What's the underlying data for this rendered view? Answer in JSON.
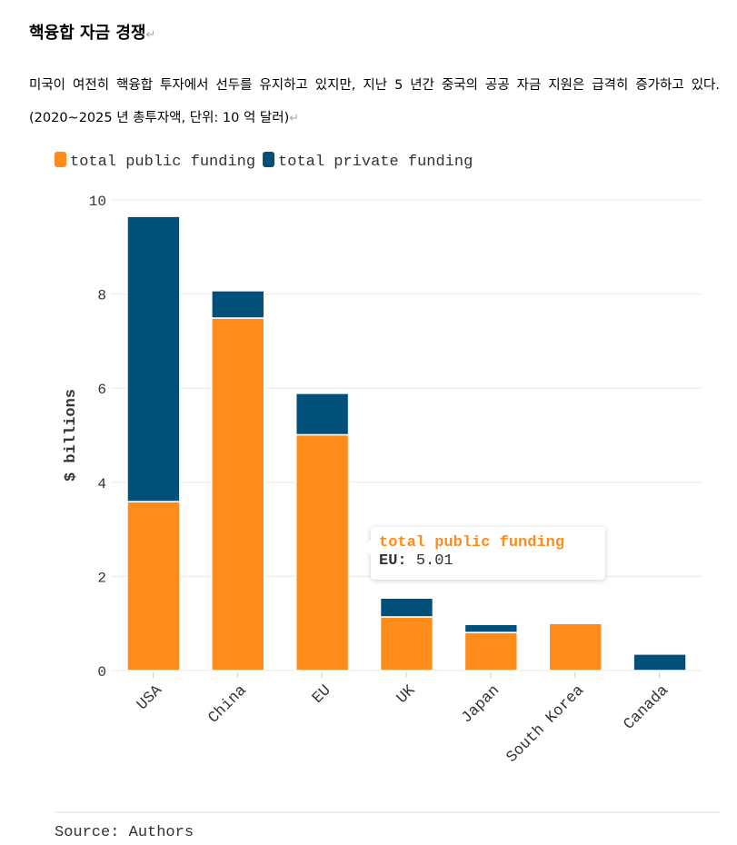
{
  "header": {
    "title": "핵융합 자금 경쟁",
    "return_mark": "↵"
  },
  "description": {
    "text": "미국이 여전히 핵융합 투자에서 선두를 유지하고 있지만, 지난 5 년간 중국의 공공 자금 지원은 급격히 증가하고 있다. (2020~2025 년 총투자액, 단위: 10 억 달러)"
  },
  "chart_data": {
    "type": "bar",
    "stacked": true,
    "categories": [
      "USA",
      "China",
      "EU",
      "UK",
      "Japan",
      "South Korea",
      "Canada"
    ],
    "series": [
      {
        "name": "total public funding",
        "color": "#ff8c1a",
        "values": [
          3.59,
          7.49,
          5.01,
          1.14,
          0.81,
          1.0,
          0
        ]
      },
      {
        "name": "total private funding",
        "color": "#00507a",
        "values": [
          6.06,
          0.58,
          0.88,
          0.4,
          0.17,
          0,
          0.35
        ]
      }
    ],
    "ylabel": "$ billions",
    "xlabel": "",
    "ylim": [
      0,
      10
    ],
    "yticks": [
      0,
      2,
      4,
      6,
      8,
      10
    ],
    "grid": true,
    "legend_position": "top-left",
    "tooltip": {
      "series": "total public funding",
      "label": "EU:",
      "value": "5.01"
    }
  },
  "source": "Source: Authors"
}
